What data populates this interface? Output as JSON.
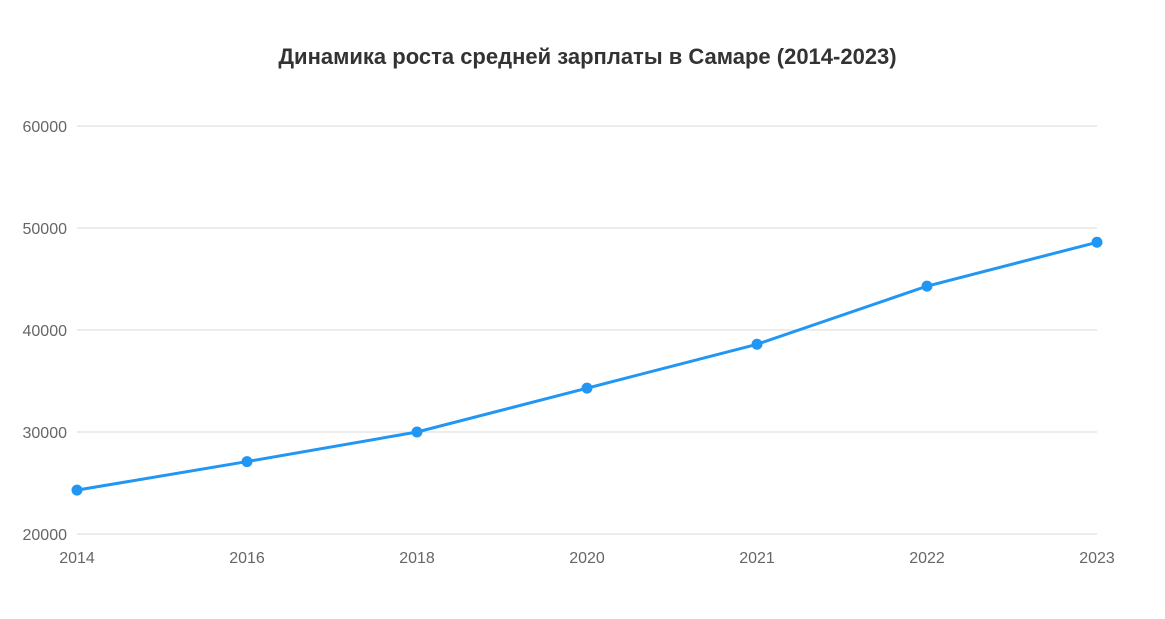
{
  "chart_data": {
    "type": "line",
    "title": "Динамика роста средней зарплаты в Самаре (2014-2023)",
    "xlabel": "",
    "ylabel": "",
    "categories": [
      "2014",
      "2016",
      "2018",
      "2020",
      "2021",
      "2022",
      "2023"
    ],
    "values": [
      24300,
      27100,
      30000,
      34300,
      38600,
      44300,
      48600
    ],
    "y_ticks": [
      "20000",
      "30000",
      "40000",
      "50000",
      "60000"
    ],
    "ylim": [
      20000,
      60000
    ],
    "grid": true,
    "legend": "none",
    "line_color": "#2196f3",
    "grid_color": "#e0e0e0"
  }
}
